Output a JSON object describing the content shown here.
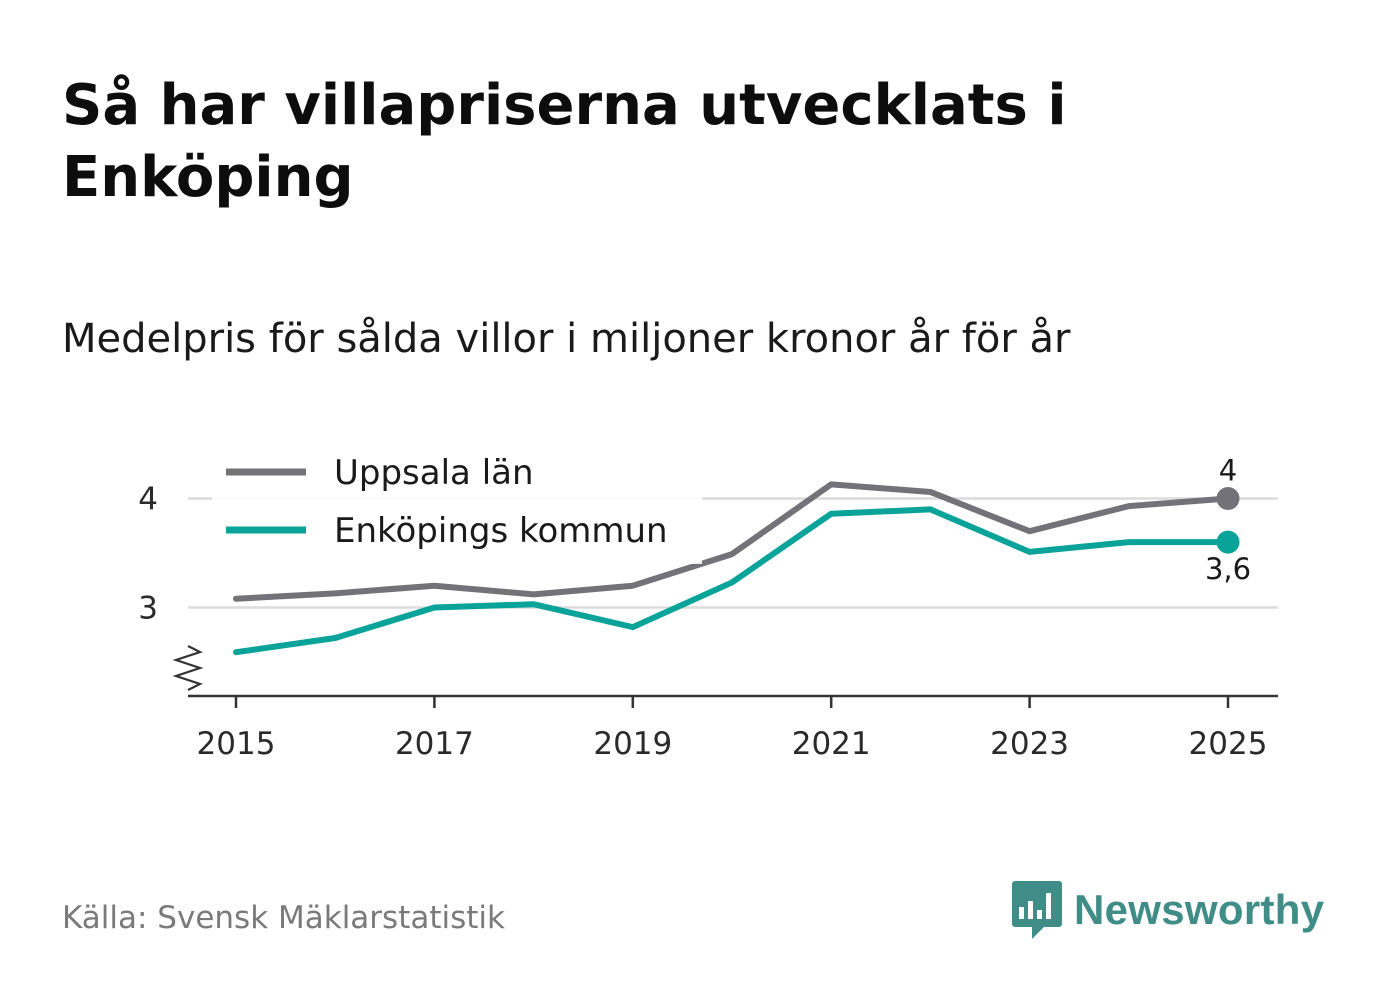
{
  "header": {
    "title": "Så har villapriserna utvecklats i Enköping",
    "subtitle": "Medelpris för sålda villor i miljoner kronor år för år"
  },
  "footer": {
    "source": "Källa: Svensk Mäklarstatistik",
    "brand": "Newsworthy"
  },
  "colors": {
    "uppsala": "#737278",
    "enkoping": "#0aa39a",
    "grid": "#dcdcdc",
    "axis": "#333333",
    "brand": "#3f8d86"
  },
  "chart_data": {
    "type": "line",
    "title": "Så har villapriserna utvecklats i Enköping",
    "subtitle": "Medelpris för sålda villor i miljoner kronor år för år",
    "xlabel": "",
    "ylabel": "",
    "x": [
      2015,
      2016,
      2017,
      2018,
      2019,
      2020,
      2021,
      2022,
      2023,
      2024,
      2025
    ],
    "xticks": [
      "2015",
      "2017",
      "2019",
      "2021",
      "2023",
      "2025"
    ],
    "yticks": [
      "3",
      "4"
    ],
    "ylim": [
      2.2,
      4.4
    ],
    "axis_break": true,
    "grid": true,
    "legend_position": "top-left",
    "series": [
      {
        "name": "Uppsala län",
        "color_key": "uppsala",
        "values": [
          3.08,
          3.13,
          3.2,
          3.12,
          3.2,
          3.49,
          4.13,
          4.06,
          3.7,
          3.93,
          4.0
        ],
        "end_label": "4"
      },
      {
        "name": "Enköpings kommun",
        "color_key": "enkoping",
        "values": [
          2.59,
          2.72,
          3.0,
          3.03,
          2.82,
          3.23,
          3.86,
          3.9,
          3.51,
          3.6,
          3.6
        ],
        "end_label": "3,6"
      }
    ]
  }
}
